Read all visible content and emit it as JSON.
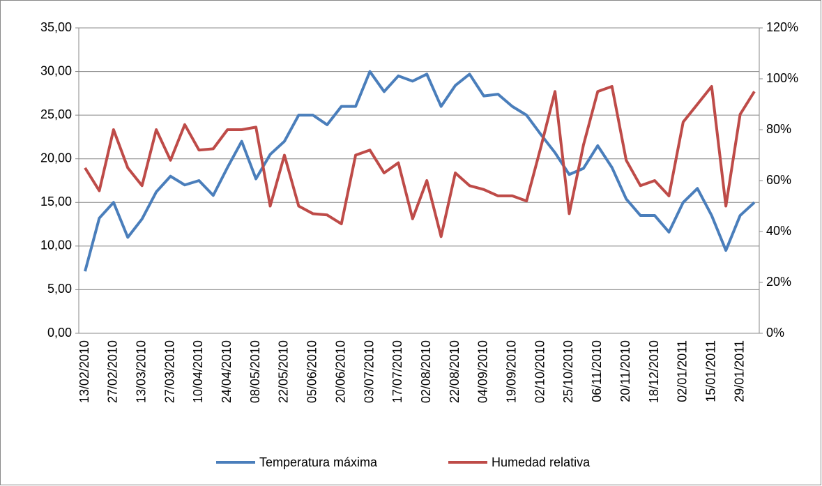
{
  "chart_data": {
    "type": "line",
    "categories": [
      "13/02/2010",
      null,
      "27/02/2010",
      null,
      "13/03/2010",
      null,
      "27/03/2010",
      null,
      "10/04/2010",
      null,
      "24/04/2010",
      null,
      "08/05/2010",
      null,
      "22/05/2010",
      null,
      "05/06/2010",
      null,
      "20/06/2010",
      null,
      "03/07/2010",
      null,
      "17/07/2010",
      null,
      "02/08/2010",
      null,
      "22/08/2010",
      null,
      "04/09/2010",
      null,
      "19/09/2010",
      null,
      "02/10/2010",
      null,
      "25/10/2010",
      null,
      "06/11/2010",
      null,
      "20/11/2010",
      null,
      "18/12/2010",
      null,
      "02/01/2011",
      null,
      "15/01/2011",
      null,
      "29/01/2011",
      null
    ],
    "series": [
      {
        "name": "Temperatura máxima",
        "color": "#4a7ebb",
        "values": [
          7.1,
          13.2,
          15,
          11,
          13.1,
          16.2,
          18,
          17,
          17.5,
          15.8,
          19,
          22,
          17.7,
          20.5,
          22,
          25,
          25,
          23.9,
          26,
          26,
          30,
          27.7,
          29.5,
          28.9,
          29.7,
          26,
          28.4,
          29.7,
          27.2,
          27.4,
          26,
          25,
          22.8,
          20.7,
          18.2,
          18.9,
          21.5,
          19,
          15.4,
          13.5,
          13.5,
          11.6,
          15,
          16.6,
          13.5,
          9.5,
          13.5,
          15
        ]
      },
      {
        "name": "Humedad relativa",
        "color": "#be4b48",
        "axis": "y2",
        "values": [
          65,
          56,
          80,
          65,
          58,
          80,
          68,
          82,
          72,
          72.5,
          80,
          80,
          81,
          50,
          70,
          50,
          47,
          46.5,
          43,
          70,
          72,
          63,
          67,
          45,
          60,
          38,
          63,
          58,
          56.5,
          54,
          54,
          52,
          73,
          95,
          47,
          74,
          95,
          97,
          68,
          58,
          60,
          54,
          83,
          90,
          97,
          50,
          86,
          95
        ]
      }
    ],
    "ylim": [
      0,
      35
    ],
    "yticks": [
      {
        "value": 0,
        "label": "0,00"
      },
      {
        "value": 5,
        "label": "5,00"
      },
      {
        "value": 10,
        "label": "10,00"
      },
      {
        "value": 15,
        "label": "15,00"
      },
      {
        "value": 20,
        "label": "20,00"
      },
      {
        "value": 25,
        "label": "25,00"
      },
      {
        "value": 30,
        "label": "30,00"
      },
      {
        "value": 35,
        "label": "35,00"
      }
    ],
    "y2lim": [
      0,
      120
    ],
    "y2ticks": [
      {
        "value": 0,
        "label": "0%"
      },
      {
        "value": 20,
        "label": "20%"
      },
      {
        "value": 40,
        "label": "40%"
      },
      {
        "value": 60,
        "label": "60%"
      },
      {
        "value": 80,
        "label": "80%"
      },
      {
        "value": 100,
        "label": "100%"
      },
      {
        "value": 120,
        "label": "120%"
      }
    ],
    "grid": true,
    "legend": "bottom"
  }
}
